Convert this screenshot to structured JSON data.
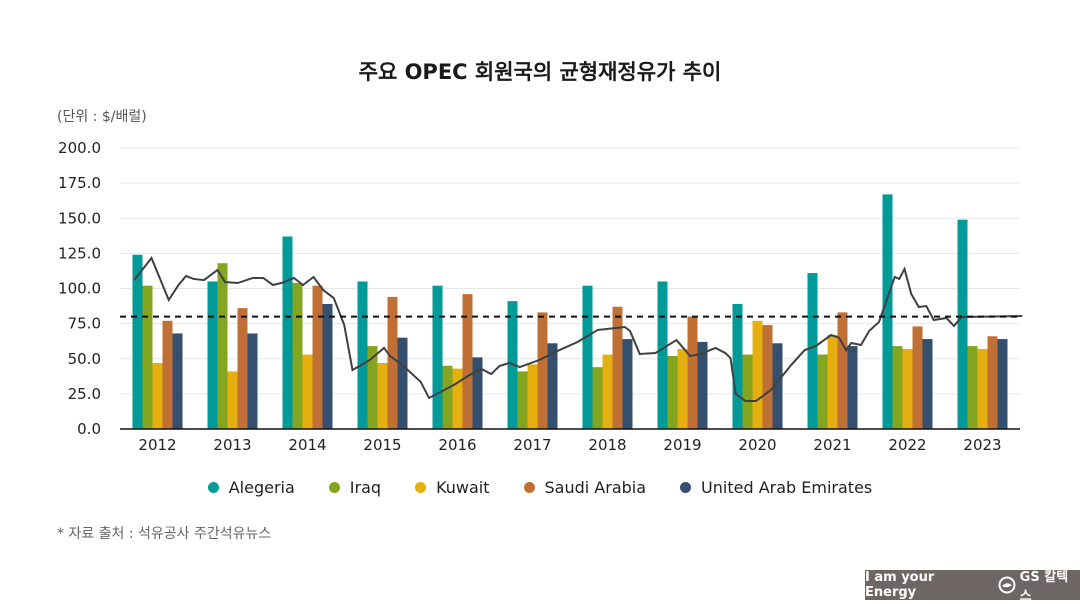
{
  "title": "주요 OPEC 회원국의 균형재정유가 추이",
  "unit": "(단위 : $/배럴)",
  "footnote": "* 자료 출처 : 석유공사 주간석유뉴스",
  "banner": {
    "slogan": "I am your Energy",
    "brand": "GS 칼텍스"
  },
  "chart_data": {
    "type": "bar",
    "title": "주요 OPEC 회원국의 균형재정유가 추이",
    "ylabel": "(단위 : $/배럴)",
    "ylim": [
      0,
      200
    ],
    "yticks": [
      "0.0",
      "25.0",
      "50.0",
      "75.0",
      "100.0",
      "125.0",
      "150.0",
      "175.0",
      "200.0"
    ],
    "grid": true,
    "legend": "bottom",
    "categories": [
      "2012",
      "2013",
      "2014",
      "2015",
      "2016",
      "2017",
      "2018",
      "2019",
      "2020",
      "2021",
      "2022",
      "2023"
    ],
    "series": [
      {
        "name": "Alegeria",
        "color": "#009a98",
        "values": [
          124,
          105,
          137,
          105,
          102,
          91,
          102,
          105,
          89,
          111,
          167,
          149
        ]
      },
      {
        "name": "Iraq",
        "color": "#84a520",
        "values": [
          102,
          118,
          104,
          59,
          45,
          41,
          44,
          52,
          53,
          53,
          59,
          59
        ]
      },
      {
        "name": "Kuwait",
        "color": "#e5b00f",
        "values": [
          47,
          41,
          53,
          47,
          43,
          46,
          53,
          57,
          77,
          67,
          57,
          57
        ]
      },
      {
        "name": "Saudi Arabia",
        "color": "#c07035",
        "values": [
          77,
          86,
          102,
          94,
          96,
          83,
          87,
          80,
          74,
          83,
          73,
          66
        ]
      },
      {
        "name": "United Arab Emirates",
        "color": "#354f6e",
        "values": [
          68,
          68,
          89,
          65,
          51,
          61,
          64,
          62,
          61,
          59,
          64,
          64
        ]
      }
    ],
    "reference_line": {
      "value": 80,
      "style": "dashed",
      "color": "#111111"
    },
    "oil_price_line": {
      "color": "#404040",
      "x": [
        2011.69,
        2011.92,
        2012.15,
        2012.28,
        2012.38,
        2012.48,
        2012.62,
        2012.8,
        2012.9,
        2013.07,
        2013.27,
        2013.41,
        2013.54,
        2013.65,
        2013.82,
        2013.94,
        2014.08,
        2014.21,
        2014.35,
        2014.49,
        2014.6,
        2014.83,
        2015.02,
        2015.1,
        2015.28,
        2015.51,
        2015.62,
        2015.95,
        2016.16,
        2016.32,
        2016.45,
        2016.56,
        2016.69,
        2016.83,
        2017.09,
        2017.36,
        2017.6,
        2017.87,
        2018.23,
        2018.3,
        2018.43,
        2018.64,
        2018.92,
        2019.1,
        2019.24,
        2019.44,
        2019.57,
        2019.64,
        2019.71,
        2019.84,
        2019.98,
        2020.18,
        2020.45,
        2020.63,
        2020.78,
        2020.98,
        2021.09,
        2021.18,
        2021.25,
        2021.38,
        2021.49,
        2021.62,
        2021.83,
        2021.89,
        2021.96,
        2022.05,
        2022.15,
        2022.25,
        2022.35,
        2022.52,
        2022.62,
        2022.72,
        2023.53
      ],
      "y": [
        106,
        121.7,
        91.8,
        102.5,
        108.9,
        106.8,
        106,
        113.2,
        104.6,
        103.9,
        107.5,
        107.5,
        102.5,
        103.9,
        107.5,
        102.5,
        108.2,
        98.9,
        93.2,
        74,
        42,
        49.1,
        57.7,
        52,
        44.8,
        33.5,
        22.1,
        31.3,
        38.4,
        42.7,
        39.1,
        44.8,
        47,
        44.1,
        49.1,
        56.2,
        61.9,
        70.5,
        72.6,
        69.8,
        53.4,
        54.1,
        63.3,
        52,
        53.4,
        57.7,
        54.1,
        50.5,
        24.9,
        19.9,
        19.9,
        27.8,
        45.6,
        56.2,
        59.1,
        66.9,
        64.8,
        56.2,
        61.2,
        59.8,
        69.8,
        76.2,
        108.2,
        106.8,
        113.9,
        96.1,
        86.8,
        87.5,
        77.6,
        79,
        73.3,
        79.7,
        80.4
      ]
    }
  }
}
